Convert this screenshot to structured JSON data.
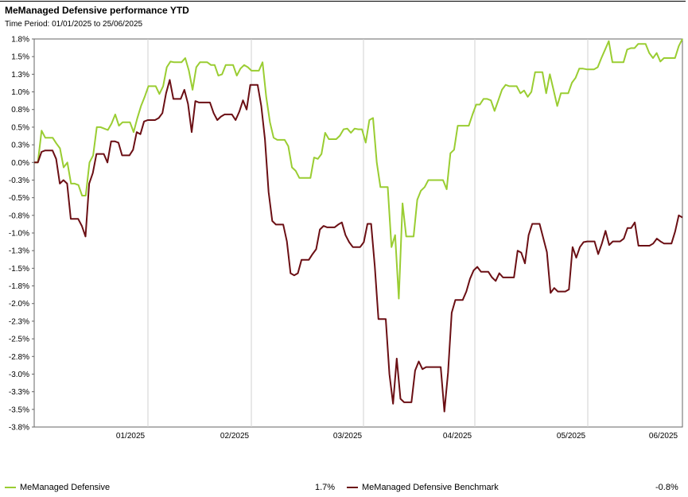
{
  "header": {
    "title": "MeManaged Defensive performance YTD",
    "subtitle": "Time Period: 01/01/2025 to 25/06/2025"
  },
  "legend": [
    {
      "label": "MeManaged Defensive",
      "value": "1.7%",
      "color": "#9acd32"
    },
    {
      "label": "MeManaged Defensive Benchmark",
      "value": "-0.8%",
      "color": "#6b0f14"
    }
  ],
  "chart_data": {
    "type": "line",
    "title": "MeManaged Defensive performance YTD",
    "subtitle": "Time Period: 01/01/2025 to 25/06/2025",
    "xlabel": "",
    "ylabel": "",
    "y_ticks": [
      "1.8%",
      "1.5%",
      "1.3%",
      "1.0%",
      "0.8%",
      "0.5%",
      "0.3%",
      "0.0%",
      "-0.3%",
      "-0.5%",
      "-0.8%",
      "-1.0%",
      "-1.3%",
      "-1.5%",
      "-1.8%",
      "-2.0%",
      "-2.3%",
      "-2.5%",
      "-2.8%",
      "-3.0%",
      "-3.3%",
      "-3.5%",
      "-3.8%"
    ],
    "x_ticks": [
      "01/2025",
      "02/2025",
      "03/2025",
      "04/2025",
      "05/2025",
      "06/2025"
    ],
    "ylim": [
      -3.75,
      1.75
    ],
    "grid": {
      "vertical": true,
      "horizontal": false
    },
    "legend_position": "bottom",
    "series": [
      {
        "name": "MeManaged Defensive",
        "color": "#9acd32",
        "values": [
          0.0,
          0.0,
          0.45,
          0.35,
          0.35,
          0.35,
          0.27,
          0.2,
          -0.07,
          0.0,
          -0.3,
          -0.3,
          -0.32,
          -0.47,
          -0.47,
          0.0,
          0.1,
          0.5,
          0.5,
          0.48,
          0.46,
          0.55,
          0.68,
          0.52,
          0.57,
          0.57,
          0.57,
          0.43,
          0.63,
          0.8,
          0.93,
          1.08,
          1.08,
          1.08,
          0.97,
          1.08,
          1.35,
          1.43,
          1.42,
          1.42,
          1.42,
          1.48,
          1.3,
          1.03,
          1.35,
          1.42,
          1.42,
          1.42,
          1.38,
          1.38,
          1.23,
          1.25,
          1.38,
          1.38,
          1.38,
          1.23,
          1.33,
          1.38,
          1.35,
          1.3,
          1.3,
          1.3,
          1.42,
          0.93,
          0.57,
          0.35,
          0.32,
          0.32,
          0.32,
          0.23,
          -0.07,
          -0.12,
          -0.22,
          -0.22,
          -0.22,
          -0.22,
          0.07,
          0.05,
          0.12,
          0.42,
          0.33,
          0.33,
          0.33,
          0.38,
          0.47,
          0.48,
          0.42,
          0.48,
          0.47,
          0.47,
          0.28,
          0.6,
          0.63,
          0.0,
          -0.35,
          -0.35,
          -0.35,
          -1.2,
          -1.03,
          -1.93,
          -0.58,
          -1.05,
          -1.05,
          -1.05,
          -0.53,
          -0.4,
          -0.35,
          -0.25,
          -0.25,
          -0.25,
          -0.25,
          -0.25,
          -0.38,
          0.13,
          0.18,
          0.52,
          0.52,
          0.52,
          0.52,
          0.68,
          0.82,
          0.82,
          0.9,
          0.9,
          0.88,
          0.73,
          0.88,
          1.03,
          1.1,
          1.08,
          1.08,
          1.08,
          0.98,
          1.02,
          0.93,
          1.0,
          1.28,
          1.28,
          1.28,
          0.98,
          1.25,
          1.03,
          0.8,
          0.98,
          0.98,
          0.98,
          1.13,
          1.2,
          1.33,
          1.33,
          1.32,
          1.32,
          1.32,
          1.35,
          1.48,
          1.6,
          1.72,
          1.42,
          1.42,
          1.42,
          1.42,
          1.6,
          1.62,
          1.62,
          1.68,
          1.68,
          1.68,
          1.55,
          1.48,
          1.55,
          1.43,
          1.48,
          1.48,
          1.48,
          1.48,
          1.65,
          1.75
        ]
      },
      {
        "name": "MeManaged Defensive Benchmark",
        "color": "#6b0f14",
        "values": [
          0.0,
          0.0,
          0.15,
          0.17,
          0.17,
          0.17,
          0.05,
          -0.3,
          -0.25,
          -0.3,
          -0.8,
          -0.8,
          -0.8,
          -0.9,
          -1.05,
          -0.3,
          -0.15,
          0.12,
          0.12,
          0.12,
          0.0,
          0.3,
          0.3,
          0.28,
          0.1,
          0.1,
          0.1,
          0.18,
          0.43,
          0.4,
          0.58,
          0.6,
          0.6,
          0.6,
          0.63,
          0.7,
          0.98,
          1.17,
          0.9,
          0.9,
          0.9,
          1.03,
          0.83,
          0.43,
          0.87,
          0.85,
          0.85,
          0.85,
          0.85,
          0.7,
          0.6,
          0.65,
          0.68,
          0.68,
          0.68,
          0.6,
          0.72,
          0.88,
          0.75,
          1.1,
          1.1,
          1.1,
          0.8,
          0.33,
          -0.42,
          -0.83,
          -0.88,
          -0.88,
          -0.88,
          -1.12,
          -1.57,
          -1.6,
          -1.57,
          -1.38,
          -1.38,
          -1.38,
          -1.3,
          -1.23,
          -0.95,
          -0.9,
          -0.92,
          -0.92,
          -0.92,
          -0.88,
          -0.85,
          -1.03,
          -1.13,
          -1.2,
          -1.2,
          -1.2,
          -1.13,
          -0.87,
          -0.87,
          -1.47,
          -2.22,
          -2.22,
          -2.22,
          -3.0,
          -3.42,
          -2.78,
          -3.35,
          -3.4,
          -3.4,
          -3.4,
          -2.95,
          -2.82,
          -2.93,
          -2.9,
          -2.9,
          -2.9,
          -2.9,
          -2.9,
          -3.53,
          -2.98,
          -2.13,
          -1.95,
          -1.95,
          -1.95,
          -1.83,
          -1.65,
          -1.53,
          -1.48,
          -1.55,
          -1.55,
          -1.55,
          -1.63,
          -1.68,
          -1.57,
          -1.63,
          -1.63,
          -1.63,
          -1.63,
          -1.25,
          -1.28,
          -1.43,
          -1.03,
          -0.87,
          -0.87,
          -0.87,
          -1.07,
          -1.27,
          -1.85,
          -1.78,
          -1.83,
          -1.83,
          -1.83,
          -1.8,
          -1.2,
          -1.35,
          -1.2,
          -1.13,
          -1.12,
          -1.12,
          -1.12,
          -1.3,
          -1.15,
          -0.97,
          -1.17,
          -1.12,
          -1.12,
          -1.12,
          -1.08,
          -0.93,
          -0.93,
          -0.85,
          -1.18,
          -1.18,
          -1.18,
          -1.18,
          -1.15,
          -1.08,
          -1.12,
          -1.15,
          -1.15,
          -1.15,
          -0.98,
          -0.75,
          -0.78
        ]
      }
    ]
  }
}
